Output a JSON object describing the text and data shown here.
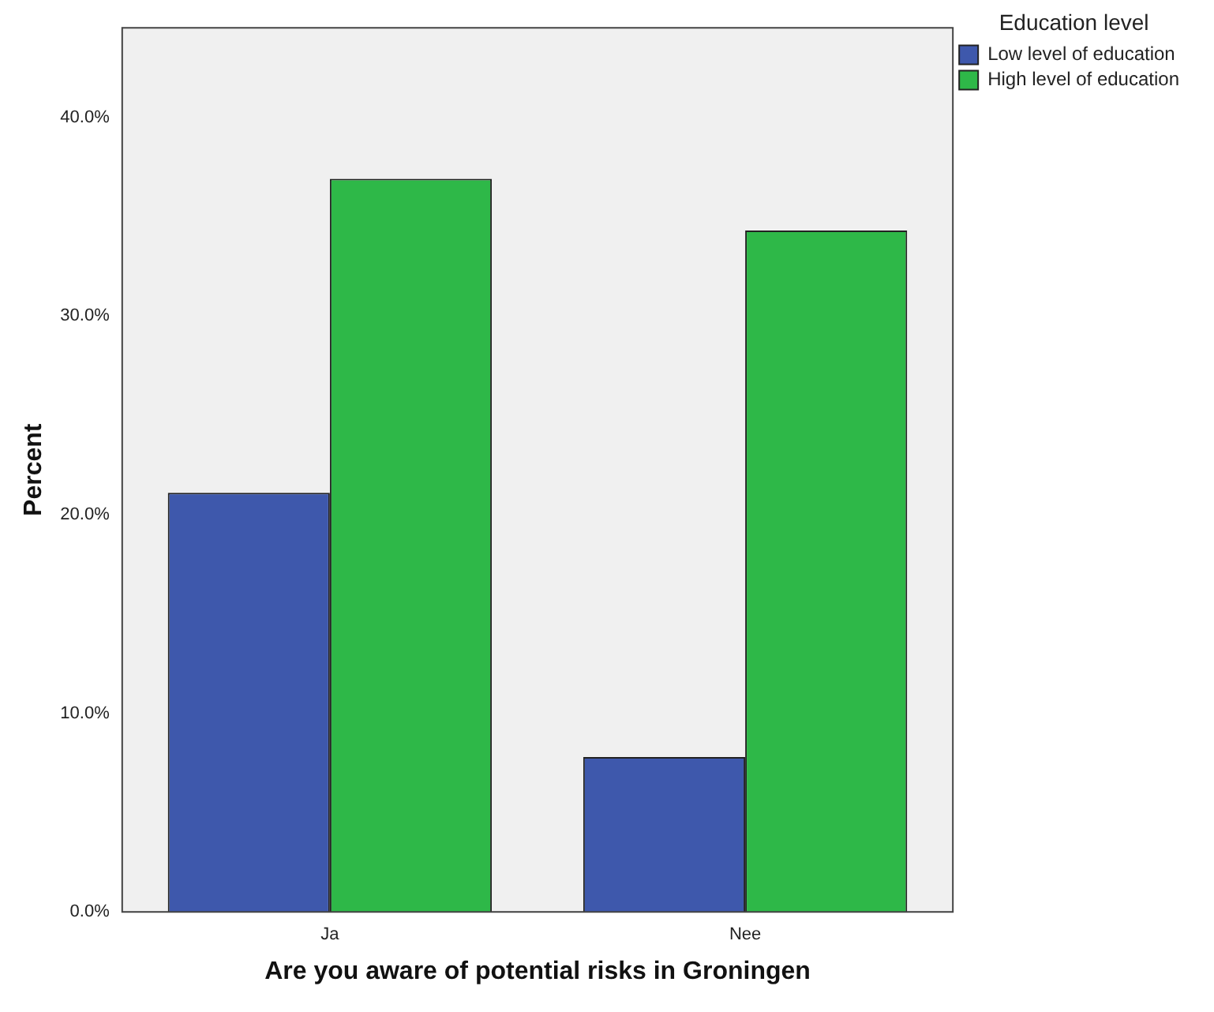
{
  "chart_data": {
    "type": "bar",
    "xlabel": "Are you aware of potential risks in Groningen",
    "ylabel": "Percent",
    "legend_title": "Education level",
    "categories": [
      "Ja",
      "Nee"
    ],
    "series": [
      {
        "name": "Low level of education",
        "color": "#3e58ac",
        "values": [
          21.1,
          7.8
        ]
      },
      {
        "name": "High level of education",
        "color": "#2eb848",
        "values": [
          36.9,
          34.3
        ]
      }
    ],
    "ylim": [
      0,
      44.5
    ],
    "yticks": [
      {
        "value": 0,
        "label": "0.0%"
      },
      {
        "value": 10,
        "label": "10.0%"
      },
      {
        "value": 20,
        "label": "20.0%"
      },
      {
        "value": 30,
        "label": "30.0%"
      },
      {
        "value": 40,
        "label": "40.0%"
      }
    ],
    "grid": false,
    "legend": "top right"
  }
}
